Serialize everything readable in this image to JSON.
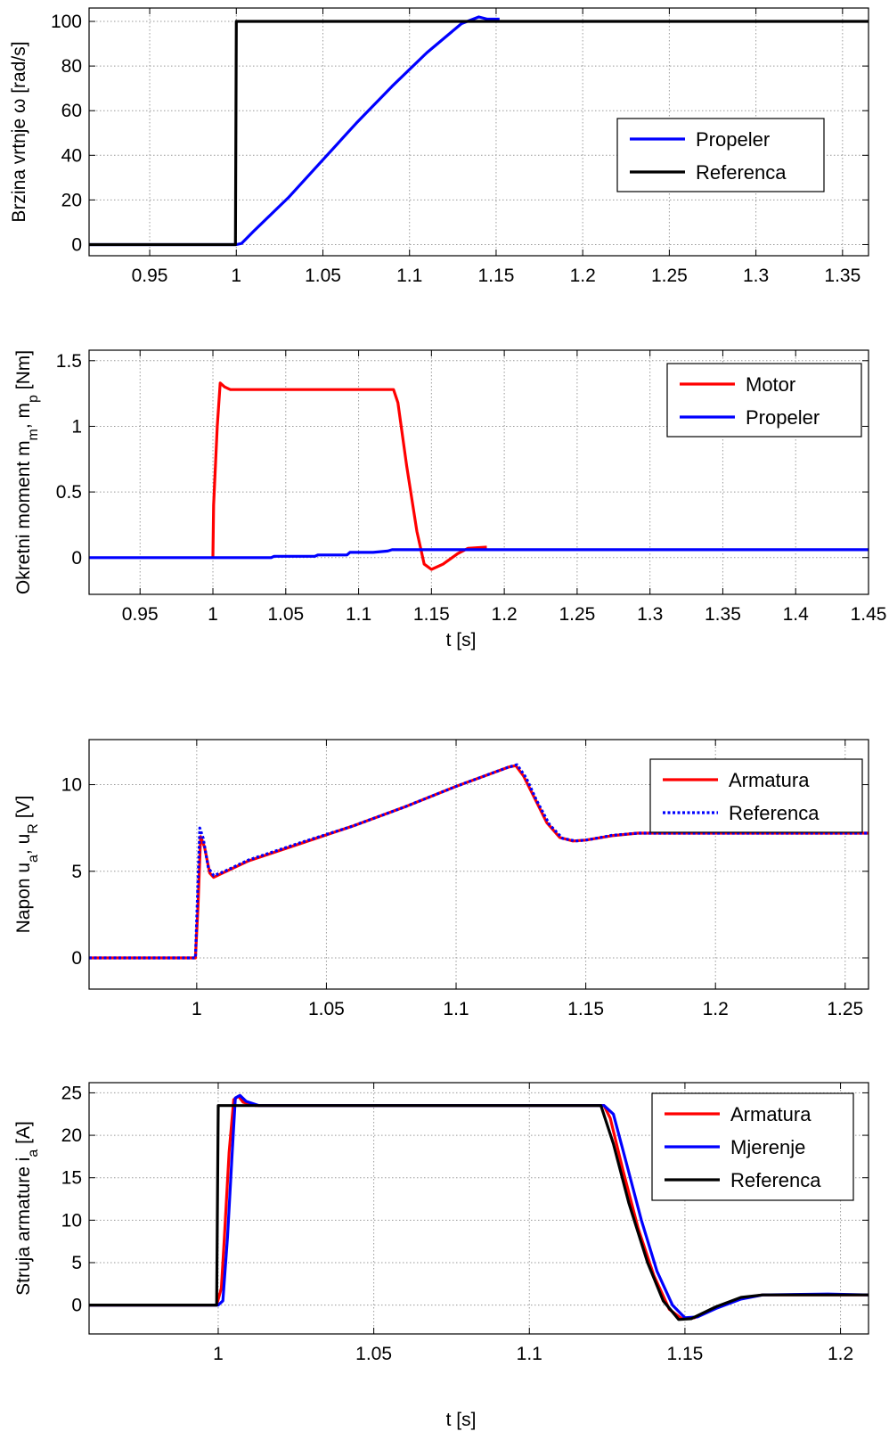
{
  "chart_data": [
    {
      "type": "line",
      "ylabel": "Brzina vrtnje ω [rad/s]",
      "xlabel": "",
      "xlim": [
        0.915,
        1.365
      ],
      "ylim": [
        -5,
        106
      ],
      "xticks": [
        "0.95",
        "1",
        "1.05",
        "1.1",
        "1.15",
        "1.2",
        "1.25",
        "1.3",
        "1.35"
      ],
      "xtick_values": [
        0.95,
        1.0,
        1.05,
        1.1,
        1.15,
        1.2,
        1.25,
        1.3,
        1.35
      ],
      "yticks": [
        "0",
        "20",
        "40",
        "60",
        "80",
        "100"
      ],
      "ytick_values": [
        0,
        20,
        40,
        60,
        80,
        100
      ],
      "grid": true,
      "legend_position": "right",
      "series": [
        {
          "name": "Propeler",
          "color": "#0000ff",
          "points": [
            [
              0.915,
              0
            ],
            [
              1.0,
              0
            ],
            [
              1.003,
              0.5
            ],
            [
              1.01,
              6
            ],
            [
              1.03,
              21
            ],
            [
              1.05,
              38
            ],
            [
              1.07,
              55
            ],
            [
              1.09,
              71
            ],
            [
              1.11,
              86
            ],
            [
              1.13,
              99
            ],
            [
              1.14,
              102
            ],
            [
              1.145,
              101
            ],
            [
              1.152,
              101
            ]
          ]
        },
        {
          "name": "Referenca",
          "color": "#000000",
          "points": [
            [
              0.915,
              0
            ],
            [
              0.9995,
              0
            ],
            [
              1.0,
              100
            ],
            [
              1.365,
              100
            ]
          ]
        }
      ]
    },
    {
      "type": "line",
      "ylabel": "Okretni moment m_m, m_p [Nm]",
      "xlabel": "t [s]",
      "xlim": [
        0.915,
        1.45
      ],
      "ylim": [
        -0.28,
        1.58
      ],
      "xticks": [
        "0.95",
        "1",
        "1.05",
        "1.1",
        "1.15",
        "1.2",
        "1.25",
        "1.3",
        "1.35",
        "1.4",
        "1.45"
      ],
      "xtick_values": [
        0.95,
        1.0,
        1.05,
        1.1,
        1.15,
        1.2,
        1.25,
        1.3,
        1.35,
        1.4,
        1.45
      ],
      "yticks": [
        "0",
        "0.5",
        "1",
        "1.5"
      ],
      "ytick_values": [
        0,
        0.5,
        1.0,
        1.5
      ],
      "grid": true,
      "legend_position": "top-right",
      "series": [
        {
          "name": "Motor",
          "color": "#ff0000",
          "points": [
            [
              1.0,
              0
            ],
            [
              1.0005,
              0.4
            ],
            [
              1.003,
              1.0
            ],
            [
              1.005,
              1.33
            ],
            [
              1.008,
              1.3
            ],
            [
              1.012,
              1.28
            ],
            [
              1.02,
              1.28
            ],
            [
              1.124,
              1.28
            ],
            [
              1.127,
              1.18
            ],
            [
              1.133,
              0.7
            ],
            [
              1.14,
              0.2
            ],
            [
              1.145,
              -0.05
            ],
            [
              1.15,
              -0.09
            ],
            [
              1.158,
              -0.05
            ],
            [
              1.168,
              0.03
            ],
            [
              1.175,
              0.07
            ],
            [
              1.188,
              0.08
            ]
          ]
        },
        {
          "name": "Propeler",
          "color": "#0000ff",
          "points": [
            [
              0.915,
              0
            ],
            [
              1.04,
              0
            ],
            [
              1.042,
              0.01
            ],
            [
              1.07,
              0.01
            ],
            [
              1.072,
              0.02
            ],
            [
              1.092,
              0.02
            ],
            [
              1.094,
              0.04
            ],
            [
              1.11,
              0.04
            ],
            [
              1.12,
              0.05
            ],
            [
              1.123,
              0.06
            ],
            [
              1.45,
              0.06
            ]
          ]
        }
      ]
    },
    {
      "type": "line",
      "ylabel": "Napon u_a, u_R [V]",
      "xlabel": "",
      "xlim": [
        0.9585,
        1.259
      ],
      "ylim": [
        -1.8,
        12.6
      ],
      "xticks": [
        "1",
        "1.05",
        "1.1",
        "1.15",
        "1.2",
        "1.25"
      ],
      "xtick_values": [
        1.0,
        1.05,
        1.1,
        1.15,
        1.2,
        1.25
      ],
      "yticks": [
        "0",
        "5",
        "10"
      ],
      "ytick_values": [
        0,
        5,
        10
      ],
      "grid": true,
      "legend_position": "top-right",
      "series": [
        {
          "name": "Armatura",
          "color": "#ff0000",
          "points": [
            [
              0.9585,
              0
            ],
            [
              0.9995,
              0
            ],
            [
              1.0005,
              3
            ],
            [
              1.0015,
              7.0
            ],
            [
              1.003,
              6.4
            ],
            [
              1.005,
              4.9
            ],
            [
              1.0065,
              4.65
            ],
            [
              1.01,
              4.9
            ],
            [
              1.02,
              5.6
            ],
            [
              1.04,
              6.6
            ],
            [
              1.06,
              7.6
            ],
            [
              1.08,
              8.7
            ],
            [
              1.1,
              9.9
            ],
            [
              1.12,
              11.0
            ],
            [
              1.123,
              11.1
            ],
            [
              1.126,
              10.5
            ],
            [
              1.13,
              9.3
            ],
            [
              1.135,
              7.8
            ],
            [
              1.14,
              6.95
            ],
            [
              1.145,
              6.75
            ],
            [
              1.15,
              6.8
            ],
            [
              1.16,
              7.05
            ],
            [
              1.17,
              7.2
            ],
            [
              1.259,
              7.2
            ]
          ]
        },
        {
          "name": "Referenca",
          "color": "#0000ff",
          "dashed": true,
          "points": [
            [
              0.9585,
              0
            ],
            [
              0.9995,
              0
            ],
            [
              1.0005,
              4.5
            ],
            [
              1.0012,
              7.5
            ],
            [
              1.0025,
              6.9
            ],
            [
              1.0045,
              5.2
            ],
            [
              1.0065,
              4.75
            ],
            [
              1.01,
              4.95
            ],
            [
              1.02,
              5.65
            ],
            [
              1.04,
              6.65
            ],
            [
              1.06,
              7.6
            ],
            [
              1.08,
              8.7
            ],
            [
              1.1,
              9.9
            ],
            [
              1.12,
              11.0
            ],
            [
              1.1235,
              11.15
            ],
            [
              1.127,
              10.4
            ],
            [
              1.131,
              9.1
            ],
            [
              1.136,
              7.7
            ],
            [
              1.141,
              6.9
            ],
            [
              1.146,
              6.75
            ],
            [
              1.151,
              6.82
            ],
            [
              1.16,
              7.07
            ],
            [
              1.17,
              7.2
            ],
            [
              1.259,
              7.2
            ]
          ]
        }
      ]
    },
    {
      "type": "line",
      "ylabel": "Struja armature i_a [A]",
      "xlabel": "t [s]",
      "xlim": [
        0.9585,
        1.209
      ],
      "ylim": [
        -3.4,
        26.2
      ],
      "xticks": [
        "1",
        "1.05",
        "1.1",
        "1.15",
        "1.2"
      ],
      "xtick_values": [
        1.0,
        1.05,
        1.1,
        1.15,
        1.2
      ],
      "yticks": [
        "0",
        "5",
        "10",
        "15",
        "20",
        "25"
      ],
      "ytick_values": [
        0,
        5,
        10,
        15,
        20,
        25
      ],
      "grid": true,
      "legend_position": "top-right",
      "series": [
        {
          "name": "Armatura",
          "color": "#ff0000",
          "points": [
            [
              0.9585,
              0
            ],
            [
              0.9995,
              0
            ],
            [
              1.001,
              2
            ],
            [
              1.002,
              8
            ],
            [
              1.0035,
              18
            ],
            [
              1.005,
              24.2
            ],
            [
              1.0065,
              24.6
            ],
            [
              1.008,
              23.9
            ],
            [
              1.012,
              23.5
            ],
            [
              1.124,
              23.5
            ],
            [
              1.126,
              22
            ],
            [
              1.13,
              16
            ],
            [
              1.135,
              9
            ],
            [
              1.14,
              3.5
            ],
            [
              1.145,
              -0.5
            ],
            [
              1.149,
              -1.6
            ],
            [
              1.153,
              -1.5
            ],
            [
              1.16,
              -0.3
            ],
            [
              1.168,
              0.8
            ],
            [
              1.175,
              1.2
            ],
            [
              1.209,
              1.2
            ]
          ]
        },
        {
          "name": "Mjerenje",
          "color": "#0000ff",
          "points": [
            [
              0.9585,
              0
            ],
            [
              1.0,
              0
            ],
            [
              1.0015,
              0.5
            ],
            [
              1.003,
              8
            ],
            [
              1.0045,
              18
            ],
            [
              1.0055,
              24.4
            ],
            [
              1.007,
              24.7
            ],
            [
              1.009,
              24
            ],
            [
              1.013,
              23.5
            ],
            [
              1.124,
              23.5
            ],
            [
              1.127,
              22.5
            ],
            [
              1.131,
              17
            ],
            [
              1.136,
              10
            ],
            [
              1.141,
              4
            ],
            [
              1.146,
              0
            ],
            [
              1.15,
              -1.5
            ],
            [
              1.154,
              -1.4
            ],
            [
              1.16,
              -0.4
            ],
            [
              1.168,
              0.7
            ],
            [
              1.175,
              1.2
            ],
            [
              1.196,
              1.3
            ],
            [
              1.209,
              1.2
            ]
          ]
        },
        {
          "name": "Referenca",
          "color": "#000000",
          "points": [
            [
              0.9585,
              0
            ],
            [
              0.9995,
              0
            ],
            [
              1.0,
              23.5
            ],
            [
              1.123,
              23.5
            ],
            [
              1.127,
              19
            ],
            [
              1.132,
              12
            ],
            [
              1.138,
              5
            ],
            [
              1.143,
              0.5
            ],
            [
              1.148,
              -1.7
            ],
            [
              1.152,
              -1.6
            ],
            [
              1.16,
              -0.2
            ],
            [
              1.168,
              0.9
            ],
            [
              1.175,
              1.2
            ],
            [
              1.209,
              1.2
            ]
          ]
        }
      ]
    }
  ]
}
